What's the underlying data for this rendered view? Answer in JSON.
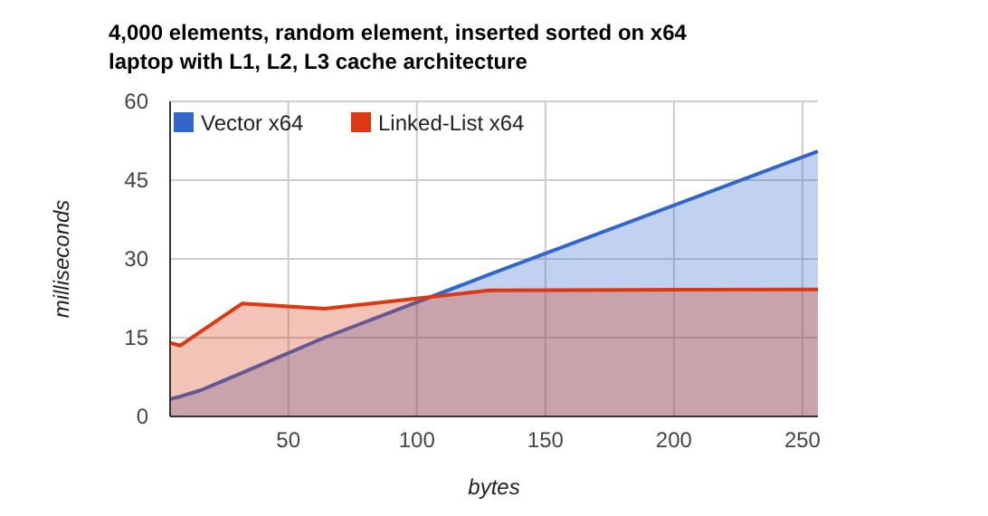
{
  "chart_data": {
    "type": "area",
    "title": "4,000 elements, random element, inserted sorted on x64 laptop with L1, L2, L3 cache architecture",
    "xlabel": "bytes",
    "ylabel": "milliseconds",
    "x": [
      4,
      8,
      16,
      32,
      64,
      128,
      256
    ],
    "series": [
      {
        "name": "Vector x64",
        "color": "#3366cc",
        "values": [
          3.3,
          3.8,
          5,
          8.3,
          15,
          27,
          50.5
        ]
      },
      {
        "name": "Linked-List x64",
        "color": "#dc3912",
        "values": [
          14,
          13.5,
          16.2,
          21.5,
          20.5,
          24,
          24.2
        ]
      }
    ],
    "xlim": [
      4,
      256
    ],
    "xticks": [
      50,
      100,
      150,
      200,
      250
    ],
    "ylim": [
      0,
      60
    ],
    "yticks": [
      0,
      15,
      30,
      45,
      60
    ],
    "grid": true,
    "legend": "top left"
  }
}
